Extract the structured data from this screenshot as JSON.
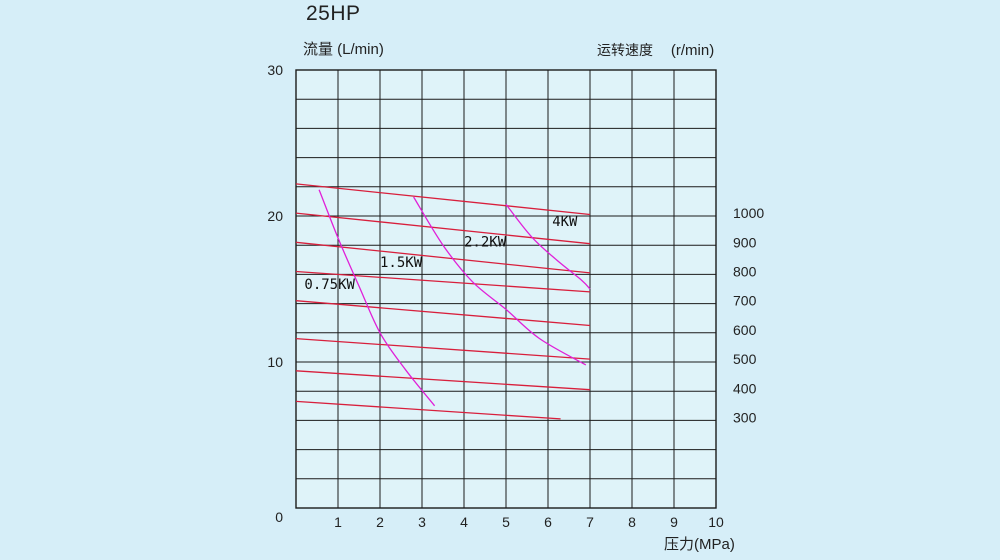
{
  "chart_data": {
    "type": "line",
    "title": "25HP",
    "ylabel_left": "流量 (L/min)",
    "ylabel_right_text": "运转速度",
    "ylabel_right_unit": "(r/min)",
    "xlabel": "压力(MPa)",
    "xlim": [
      0,
      10
    ],
    "ylim": [
      0,
      30
    ],
    "x_ticks": [
      "1",
      "2",
      "3",
      "4",
      "5",
      "6",
      "7",
      "8",
      "9",
      "10"
    ],
    "y_ticks_left": [
      {
        "value": 0,
        "label": "0"
      },
      {
        "value": 10,
        "label": "10"
      },
      {
        "value": 20,
        "label": "20"
      },
      {
        "value": 30,
        "label": "30"
      }
    ],
    "y_ticks_right": [
      {
        "value": 20.2,
        "label": "1000"
      },
      {
        "value": 18.2,
        "label": "900"
      },
      {
        "value": 16.2,
        "label": "800"
      },
      {
        "value": 14.2,
        "label": "700"
      },
      {
        "value": 12.2,
        "label": "600"
      },
      {
        "value": 10.2,
        "label": "500"
      },
      {
        "value": 8.2,
        "label": "400"
      },
      {
        "value": 6.2,
        "label": "300"
      }
    ],
    "grid": true,
    "speed_lines": [
      {
        "speed": "1000",
        "points": [
          [
            0,
            22.2
          ],
          [
            7,
            20.1
          ]
        ]
      },
      {
        "speed": "900",
        "points": [
          [
            0,
            20.2
          ],
          [
            7,
            18.1
          ]
        ]
      },
      {
        "speed": "800",
        "points": [
          [
            0,
            18.2
          ],
          [
            7,
            16.1
          ]
        ]
      },
      {
        "speed": "700",
        "points": [
          [
            0,
            16.2
          ],
          [
            7,
            14.8
          ]
        ]
      },
      {
        "speed": "600",
        "points": [
          [
            0,
            14.2
          ],
          [
            7,
            12.5
          ]
        ]
      },
      {
        "speed": "500",
        "points": [
          [
            0,
            11.6
          ],
          [
            7,
            10.2
          ]
        ]
      },
      {
        "speed": "400",
        "points": [
          [
            0,
            9.4
          ],
          [
            7,
            8.1
          ]
        ]
      },
      {
        "speed": "300",
        "points": [
          [
            0,
            7.3
          ],
          [
            6.3,
            6.1
          ]
        ]
      }
    ],
    "power_curves": [
      {
        "label": "0.75KW",
        "label_pos": [
          0.2,
          15.0
        ],
        "points": [
          [
            0.55,
            21.8
          ],
          [
            1.0,
            18.5
          ],
          [
            1.5,
            15.2
          ],
          [
            2.0,
            12.0
          ],
          [
            2.6,
            9.5
          ],
          [
            3.3,
            7.0
          ]
        ]
      },
      {
        "label": "1.5KW",
        "label_pos": [
          2.0,
          16.5
        ],
        "points": [
          [
            2.8,
            21.3
          ],
          [
            3.5,
            18.0
          ],
          [
            4.2,
            15.5
          ],
          [
            5.0,
            13.6
          ],
          [
            5.8,
            11.6
          ],
          [
            6.9,
            9.8
          ]
        ]
      },
      {
        "label": "2.2KW",
        "label_pos": [
          4.0,
          17.9
        ],
        "points": [
          [
            5.0,
            20.8
          ],
          [
            5.6,
            18.6
          ],
          [
            6.2,
            17.0
          ],
          [
            6.8,
            15.6
          ],
          [
            7.0,
            15.0
          ]
        ]
      },
      {
        "label": "4KW",
        "label_pos": [
          6.1,
          19.3
        ],
        "points": []
      }
    ],
    "colors": {
      "grid": "#1b1b1b",
      "plot_bg": "#dff3f9",
      "speed_line": "#d81f3c",
      "power_curve": "#e020d8"
    }
  }
}
